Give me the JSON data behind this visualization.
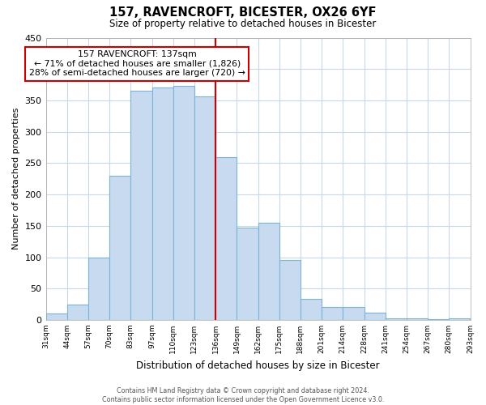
{
  "title": "157, RAVENCROFT, BICESTER, OX26 6YF",
  "subtitle": "Size of property relative to detached houses in Bicester",
  "xlabel": "Distribution of detached houses by size in Bicester",
  "ylabel": "Number of detached properties",
  "bin_labels": [
    "31sqm",
    "44sqm",
    "57sqm",
    "70sqm",
    "83sqm",
    "97sqm",
    "110sqm",
    "123sqm",
    "136sqm",
    "149sqm",
    "162sqm",
    "175sqm",
    "188sqm",
    "201sqm",
    "214sqm",
    "228sqm",
    "241sqm",
    "254sqm",
    "267sqm",
    "280sqm",
    "293sqm"
  ],
  "bar_values": [
    10,
    25,
    100,
    230,
    365,
    370,
    373,
    357,
    260,
    147,
    155,
    96,
    34,
    21,
    21,
    11,
    2,
    3,
    1,
    2
  ],
  "bar_color": "#c8daf0",
  "bar_edge_color": "#7ab4d8",
  "vline_x_index": 8,
  "vline_color": "#cc0000",
  "ylim": [
    0,
    450
  ],
  "yticks": [
    0,
    50,
    100,
    150,
    200,
    250,
    300,
    350,
    400,
    450
  ],
  "annotation_title": "157 RAVENCROFT: 137sqm",
  "annotation_line1": "← 71% of detached houses are smaller (1,826)",
  "annotation_line2": "28% of semi-detached houses are larger (720) →",
  "annotation_box_color": "#ffffff",
  "annotation_box_edge": "#cc0000",
  "footer_line1": "Contains HM Land Registry data © Crown copyright and database right 2024.",
  "footer_line2": "Contains public sector information licensed under the Open Government Licence v3.0.",
  "background_color": "#ffffff",
  "grid_color": "#c8d8e8"
}
